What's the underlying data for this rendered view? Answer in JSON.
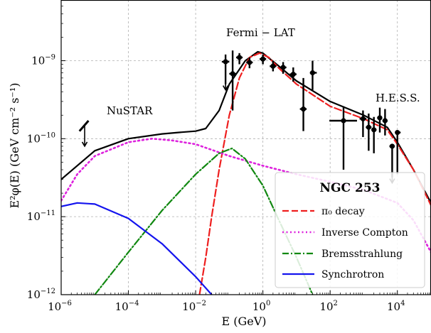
{
  "chart_data": {
    "type": "line",
    "title": "",
    "xlabel": "E (GeV)",
    "ylabel": "E²φ(E) (GeV cm⁻² s⁻¹)",
    "xscale": "log",
    "yscale": "log",
    "xlim": [
      1e-06,
      100000
    ],
    "ylim": [
      1e-12,
      6e-09
    ],
    "grid": true,
    "x_ticks": [
      {
        "value": 1e-06,
        "base": "10",
        "exp": "−6"
      },
      {
        "value": 0.0001,
        "base": "10",
        "exp": "−4"
      },
      {
        "value": 0.01,
        "base": "10",
        "exp": "−2"
      },
      {
        "value": 1,
        "base": "10",
        "exp": "0"
      },
      {
        "value": 100,
        "base": "10",
        "exp": "2"
      },
      {
        "value": 10000,
        "base": "10",
        "exp": "4"
      }
    ],
    "y_ticks": [
      {
        "value": 1e-12,
        "base": "10",
        "exp": "−12"
      },
      {
        "value": 1e-11,
        "base": "10",
        "exp": "−11"
      },
      {
        "value": 1e-10,
        "base": "10",
        "exp": "−10"
      },
      {
        "value": 1e-09,
        "base": "10",
        "exp": "−9"
      }
    ],
    "annotations": [
      {
        "text": "NuSTAR",
        "x": 2.2e-06,
        "y": 1.8e-10
      },
      {
        "text": "Fermi − LAT",
        "x": 0.06,
        "y": 2.3e-09
      },
      {
        "text": "H.E.S.S.",
        "x": 2600,
        "y": 2.5e-10
      }
    ],
    "legend": {
      "title": "NGC 253",
      "position": "lower-right"
    },
    "series": [
      {
        "name": "",
        "style": "solid",
        "color": "#000000",
        "points": [
          [
            1e-06,
            3e-11
          ],
          [
            1e-05,
            7e-11
          ],
          [
            0.0001,
            1e-10
          ],
          [
            0.001,
            1.15e-10
          ],
          [
            0.003,
            1.2e-10
          ],
          [
            0.01,
            1.25e-10
          ],
          [
            0.02,
            1.35e-10
          ],
          [
            0.05,
            2.3e-10
          ],
          [
            0.1,
            5e-10
          ],
          [
            0.3,
            1e-09
          ],
          [
            0.7,
            1.3e-09
          ],
          [
            1,
            1.25e-09
          ],
          [
            3,
            8.5e-10
          ],
          [
            10,
            5.5e-10
          ],
          [
            100,
            3e-10
          ],
          [
            1000,
            2e-10
          ],
          [
            5000,
            1.4e-10
          ],
          [
            10000,
            9e-11
          ],
          [
            30000,
            4e-11
          ],
          [
            100000,
            1.5e-11
          ]
        ]
      },
      {
        "name": "π₀ decay",
        "style": "dashed",
        "color": "#ee1f1f",
        "points": [
          [
            0.013,
            1e-12
          ],
          [
            0.02,
            3e-12
          ],
          [
            0.03,
            1e-11
          ],
          [
            0.05,
            4e-11
          ],
          [
            0.1,
            2e-10
          ],
          [
            0.2,
            6e-10
          ],
          [
            0.4,
            1.1e-09
          ],
          [
            0.8,
            1.25e-09
          ],
          [
            1.5,
            1.1e-09
          ],
          [
            3,
            8e-10
          ],
          [
            10,
            5e-10
          ],
          [
            100,
            2.6e-10
          ],
          [
            1000,
            1.8e-10
          ],
          [
            5000,
            1.3e-10
          ],
          [
            10000,
            8.5e-11
          ],
          [
            30000,
            4e-11
          ],
          [
            100000,
            1.4e-11
          ]
        ]
      },
      {
        "name": "Inverse Compton",
        "style": "dotted",
        "color": "#dd22dd",
        "points": [
          [
            1e-06,
            1.6e-11
          ],
          [
            3e-06,
            3.5e-11
          ],
          [
            1e-05,
            6e-11
          ],
          [
            0.0001,
            9e-11
          ],
          [
            0.0005,
            1e-10
          ],
          [
            0.002,
            9.5e-11
          ],
          [
            0.01,
            8.5e-11
          ],
          [
            0.1,
            6e-11
          ],
          [
            1,
            4.5e-11
          ],
          [
            10,
            3.5e-11
          ],
          [
            100,
            2.8e-11
          ],
          [
            1000,
            2.2e-11
          ],
          [
            10000,
            1.5e-11
          ],
          [
            30000,
            9e-12
          ],
          [
            100000,
            3.5e-12
          ]
        ]
      },
      {
        "name": "Bremsstrahlung",
        "style": "dashdot",
        "color": "#118811",
        "points": [
          [
            1e-05,
            1e-12
          ],
          [
            0.0001,
            3.5e-12
          ],
          [
            0.001,
            1.2e-11
          ],
          [
            0.01,
            3.5e-11
          ],
          [
            0.05,
            6.5e-11
          ],
          [
            0.12,
            7.5e-11
          ],
          [
            0.3,
            5.5e-11
          ],
          [
            1,
            2.5e-11
          ],
          [
            3,
            9e-12
          ],
          [
            10,
            3e-12
          ],
          [
            30,
            1e-12
          ]
        ]
      },
      {
        "name": "Synchrotron",
        "style": "solid",
        "color": "#1414ee",
        "points": [
          [
            1e-06,
            1.35e-11
          ],
          [
            3e-06,
            1.5e-11
          ],
          [
            1e-05,
            1.45e-11
          ],
          [
            0.0001,
            9.5e-12
          ],
          [
            0.001,
            4.5e-12
          ],
          [
            0.01,
            1.7e-12
          ],
          [
            0.03,
            1e-12
          ]
        ]
      },
      {
        "name": "",
        "style": "errorbars",
        "color": "#000000",
        "points": [
          {
            "x": 0.0775,
            "y": 9.7e-10,
            "lo": 5e-10,
            "hi": 1.2e-09,
            "xlo": 0.06,
            "xhi": 0.1,
            "ul": true
          },
          {
            "x": 0.126,
            "y": 6.8e-10,
            "lo": 2.3e-10,
            "hi": 1.35e-09,
            "xlo": 0.1,
            "xhi": 0.16,
            "ul": false
          },
          {
            "x": 0.2,
            "y": 1.1e-09,
            "lo": 9e-10,
            "hi": 1.25e-09,
            "xlo": 0.16,
            "xhi": 0.25,
            "ul": false
          },
          {
            "x": 0.4,
            "y": 9.5e-10,
            "lo": 8e-10,
            "hi": 1.1e-09,
            "xlo": 0.32,
            "xhi": 0.5,
            "ul": false
          },
          {
            "x": 1.0,
            "y": 1.05e-09,
            "lo": 9e-10,
            "hi": 1.2e-09,
            "xlo": 0.8,
            "xhi": 1.25,
            "ul": false
          },
          {
            "x": 2.0,
            "y": 8.5e-10,
            "lo": 7.3e-10,
            "hi": 1e-09,
            "xlo": 1.6,
            "xhi": 2.5,
            "ul": false
          },
          {
            "x": 4.0,
            "y": 8.2e-10,
            "lo": 6.8e-10,
            "hi": 9.6e-10,
            "xlo": 3.2,
            "xhi": 5,
            "ul": false
          },
          {
            "x": 8.0,
            "y": 6.7e-10,
            "lo": 5.4e-10,
            "hi": 8.2e-10,
            "xlo": 6.3,
            "xhi": 10,
            "ul": false
          },
          {
            "x": 16.0,
            "y": 2.4e-10,
            "lo": 1.25e-10,
            "hi": 6e-10,
            "xlo": 12.6,
            "xhi": 20,
            "ul": false
          },
          {
            "x": 30.0,
            "y": 7e-10,
            "lo": 4.2e-10,
            "hi": 1e-09,
            "xlo": 25,
            "xhi": 40,
            "ul": false
          },
          {
            "x": 250,
            "y": 1.7e-10,
            "lo": 4e-11,
            "hi": 2.6e-10,
            "xlo": 95,
            "xhi": 630,
            "ul": false
          },
          {
            "x": 950,
            "y": 1.8e-10,
            "lo": 1.05e-10,
            "hi": 2.3e-10,
            "xlo": 750,
            "xhi": 1200,
            "ul": false
          },
          {
            "x": 1400,
            "y": 1.4e-10,
            "lo": 7e-11,
            "hi": 2.1e-10,
            "xlo": 1150,
            "xhi": 1700,
            "ul": false
          },
          {
            "x": 2000,
            "y": 1.3e-10,
            "lo": 6.5e-11,
            "hi": 1.9e-10,
            "xlo": 1700,
            "xhi": 2400,
            "ul": false
          },
          {
            "x": 3000,
            "y": 1.85e-10,
            "lo": 1.2e-10,
            "hi": 2.5e-10,
            "xlo": 2500,
            "xhi": 3500,
            "ul": false
          },
          {
            "x": 4300,
            "y": 1.7e-10,
            "lo": 1.1e-10,
            "hi": 2.4e-10,
            "xlo": 3600,
            "xhi": 5100,
            "ul": false
          },
          {
            "x": 7000,
            "y": 8e-11,
            "lo": 3.2e-11,
            "hi": 8e-11,
            "xlo": 5800,
            "xhi": 8400,
            "ul": true
          },
          {
            "x": 10000,
            "y": 1.2e-10,
            "lo": 3.5e-11,
            "hi": 1.2e-10,
            "xlo": 9000,
            "xhi": 12500,
            "ul": false
          }
        ]
      },
      {
        "name": "",
        "style": "ul-segment",
        "color": "#000000",
        "points": [
          {
            "x1": 3.5e-06,
            "y1": 1.25e-10,
            "x2": 6.5e-06,
            "y2": 1.7e-10,
            "arrow_x": 5e-06,
            "arrow_top": 1.45e-10,
            "arrow_bottom": 8e-11
          }
        ]
      }
    ]
  }
}
